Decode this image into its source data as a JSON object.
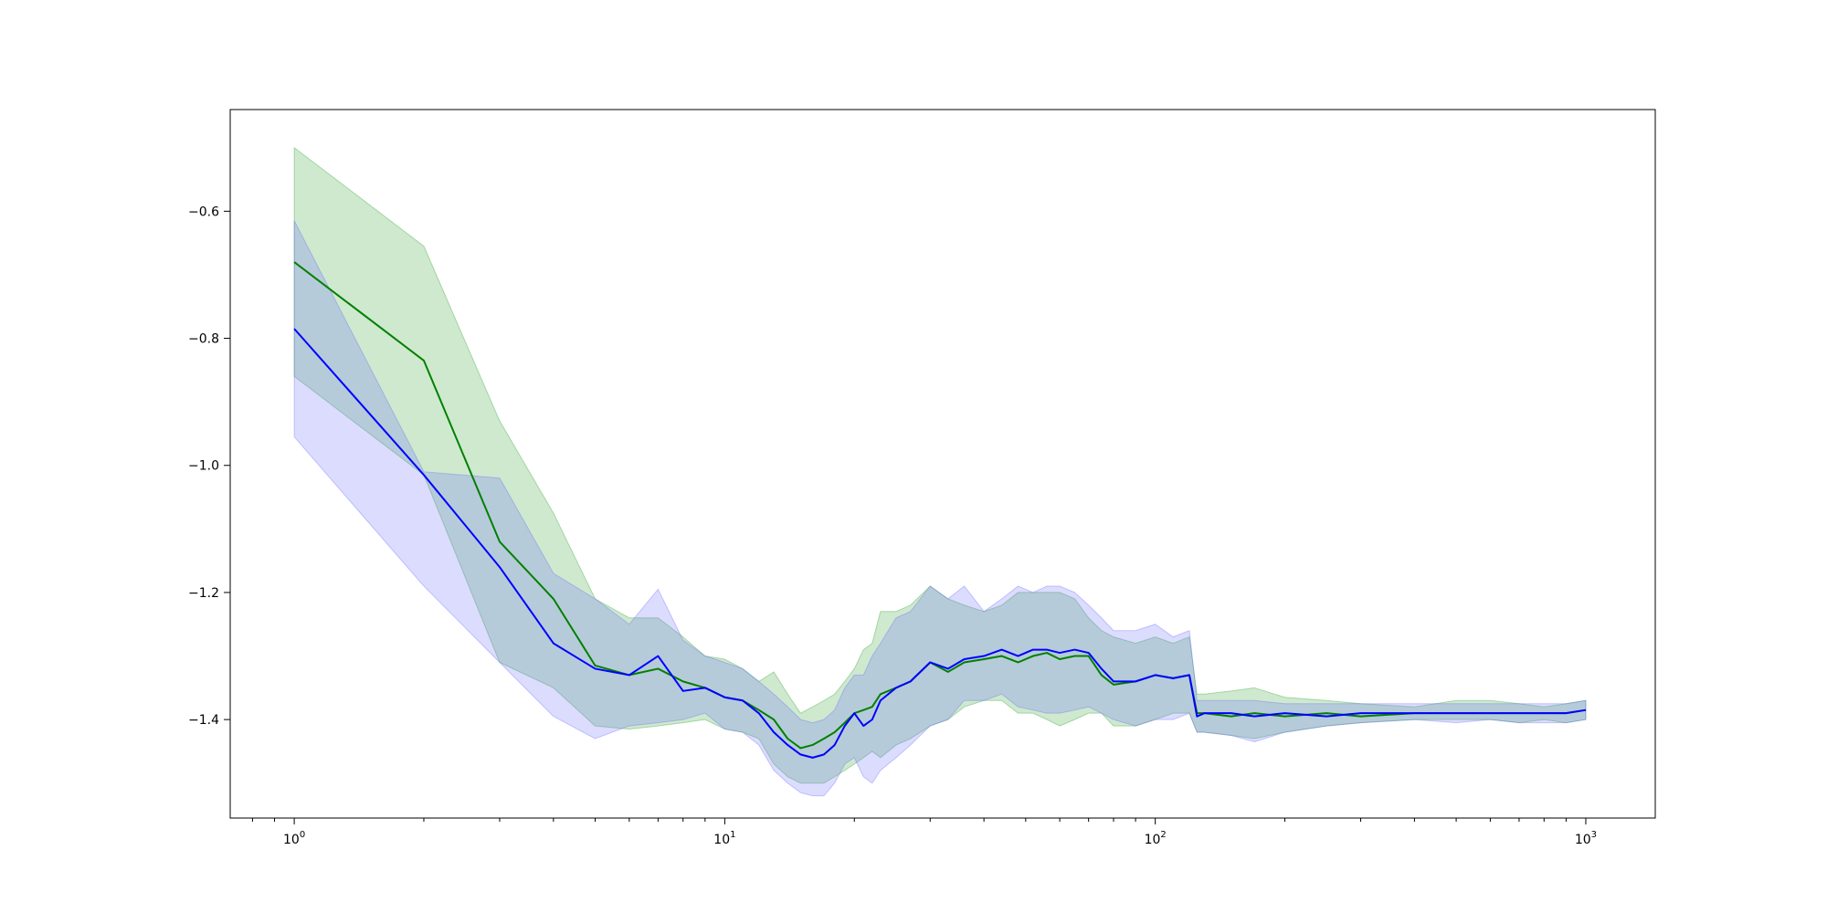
{
  "chart_data": {
    "type": "line",
    "title": "",
    "xlabel": "",
    "ylabel": "",
    "xscale": "log",
    "xlim": [
      0.71,
      1450
    ],
    "ylim": [
      -1.555,
      -0.44
    ],
    "grid": false,
    "x_ticks": [
      {
        "value": 1,
        "base": "10",
        "exp": "0"
      },
      {
        "value": 10,
        "base": "10",
        "exp": "1"
      },
      {
        "value": 100,
        "base": "10",
        "exp": "2"
      },
      {
        "value": 1000,
        "base": "10",
        "exp": "3"
      }
    ],
    "y_ticks": [
      {
        "value": -0.6,
        "label": "−0.6"
      },
      {
        "value": -0.8,
        "label": "−0.8"
      },
      {
        "value": -1.0,
        "label": "−1.0"
      },
      {
        "value": -1.2,
        "label": "−1.2"
      },
      {
        "value": -1.4,
        "label": "−1.4"
      }
    ],
    "series": [
      {
        "color": "#008000",
        "band_color": "#2ca02c",
        "x": [
          1,
          2,
          3,
          4,
          5,
          6,
          7,
          8,
          9,
          10,
          11,
          12,
          13,
          14,
          15,
          16,
          17,
          18,
          19,
          20,
          21,
          22,
          23,
          25,
          27,
          30,
          33,
          36,
          40,
          44,
          48,
          52,
          56,
          60,
          65,
          70,
          75,
          80,
          90,
          100,
          110,
          120,
          125,
          130,
          150,
          170,
          200,
          250,
          300,
          400,
          500,
          600,
          700,
          800,
          900,
          1000
        ],
        "y": [
          -0.68,
          -0.835,
          -1.12,
          -1.21,
          -1.315,
          -1.33,
          -1.32,
          -1.34,
          -1.35,
          -1.365,
          -1.37,
          -1.385,
          -1.4,
          -1.43,
          -1.445,
          -1.44,
          -1.43,
          -1.42,
          -1.405,
          -1.39,
          -1.385,
          -1.38,
          -1.36,
          -1.35,
          -1.34,
          -1.31,
          -1.325,
          -1.31,
          -1.305,
          -1.3,
          -1.31,
          -1.3,
          -1.295,
          -1.305,
          -1.3,
          -1.3,
          -1.33,
          -1.345,
          -1.34,
          -1.33,
          -1.335,
          -1.33,
          -1.39,
          -1.39,
          -1.395,
          -1.39,
          -1.395,
          -1.39,
          -1.395,
          -1.39,
          -1.39,
          -1.39,
          -1.39,
          -1.39,
          -1.39,
          -1.385
        ],
        "upper": [
          -0.5,
          -0.655,
          -0.93,
          -1.075,
          -1.21,
          -1.24,
          -1.24,
          -1.27,
          -1.3,
          -1.305,
          -1.32,
          -1.34,
          -1.325,
          -1.36,
          -1.39,
          -1.38,
          -1.37,
          -1.36,
          -1.34,
          -1.32,
          -1.29,
          -1.28,
          -1.23,
          -1.23,
          -1.22,
          -1.19,
          -1.21,
          -1.22,
          -1.23,
          -1.22,
          -1.2,
          -1.2,
          -1.2,
          -1.2,
          -1.21,
          -1.24,
          -1.26,
          -1.27,
          -1.28,
          -1.27,
          -1.28,
          -1.27,
          -1.36,
          -1.36,
          -1.355,
          -1.35,
          -1.365,
          -1.37,
          -1.375,
          -1.38,
          -1.37,
          -1.37,
          -1.375,
          -1.38,
          -1.375,
          -1.37
        ],
        "lower": [
          -0.86,
          -1.015,
          -1.31,
          -1.35,
          -1.41,
          -1.415,
          -1.41,
          -1.405,
          -1.4,
          -1.415,
          -1.42,
          -1.43,
          -1.47,
          -1.49,
          -1.5,
          -1.5,
          -1.5,
          -1.49,
          -1.48,
          -1.47,
          -1.46,
          -1.45,
          -1.46,
          -1.44,
          -1.43,
          -1.41,
          -1.4,
          -1.38,
          -1.37,
          -1.37,
          -1.39,
          -1.39,
          -1.4,
          -1.41,
          -1.4,
          -1.39,
          -1.39,
          -1.41,
          -1.41,
          -1.4,
          -1.39,
          -1.39,
          -1.42,
          -1.42,
          -1.425,
          -1.43,
          -1.42,
          -1.41,
          -1.405,
          -1.4,
          -1.4,
          -1.4,
          -1.405,
          -1.4,
          -1.405,
          -1.4
        ]
      },
      {
        "color": "#0000ff",
        "band_color": "#6666ff",
        "x": [
          1,
          2,
          3,
          4,
          5,
          6,
          7,
          8,
          9,
          10,
          11,
          12,
          13,
          14,
          15,
          16,
          17,
          18,
          19,
          20,
          21,
          22,
          23,
          25,
          27,
          30,
          33,
          36,
          40,
          44,
          48,
          52,
          56,
          60,
          65,
          70,
          75,
          80,
          90,
          100,
          110,
          120,
          125,
          130,
          150,
          170,
          200,
          250,
          300,
          400,
          500,
          600,
          700,
          800,
          900,
          1000
        ],
        "y": [
          -0.785,
          -1.015,
          -1.16,
          -1.28,
          -1.32,
          -1.33,
          -1.3,
          -1.355,
          -1.35,
          -1.365,
          -1.37,
          -1.39,
          -1.42,
          -1.44,
          -1.455,
          -1.46,
          -1.455,
          -1.44,
          -1.41,
          -1.39,
          -1.41,
          -1.4,
          -1.37,
          -1.35,
          -1.34,
          -1.31,
          -1.32,
          -1.305,
          -1.3,
          -1.29,
          -1.3,
          -1.29,
          -1.29,
          -1.295,
          -1.29,
          -1.295,
          -1.32,
          -1.34,
          -1.34,
          -1.33,
          -1.335,
          -1.33,
          -1.395,
          -1.39,
          -1.39,
          -1.395,
          -1.39,
          -1.395,
          -1.39,
          -1.39,
          -1.39,
          -1.39,
          -1.39,
          -1.39,
          -1.39,
          -1.385
        ],
        "upper": [
          -0.615,
          -1.01,
          -1.02,
          -1.17,
          -1.21,
          -1.25,
          -1.195,
          -1.275,
          -1.3,
          -1.31,
          -1.32,
          -1.34,
          -1.36,
          -1.38,
          -1.4,
          -1.405,
          -1.4,
          -1.385,
          -1.35,
          -1.33,
          -1.33,
          -1.3,
          -1.28,
          -1.24,
          -1.23,
          -1.19,
          -1.21,
          -1.19,
          -1.23,
          -1.21,
          -1.19,
          -1.2,
          -1.19,
          -1.19,
          -1.2,
          -1.22,
          -1.24,
          -1.26,
          -1.26,
          -1.25,
          -1.27,
          -1.26,
          -1.37,
          -1.37,
          -1.37,
          -1.37,
          -1.375,
          -1.375,
          -1.375,
          -1.375,
          -1.375,
          -1.375,
          -1.375,
          -1.375,
          -1.375,
          -1.37
        ],
        "lower": [
          -0.955,
          -1.19,
          -1.31,
          -1.395,
          -1.43,
          -1.41,
          -1.405,
          -1.4,
          -1.39,
          -1.415,
          -1.42,
          -1.44,
          -1.48,
          -1.5,
          -1.515,
          -1.52,
          -1.52,
          -1.5,
          -1.47,
          -1.46,
          -1.49,
          -1.5,
          -1.48,
          -1.46,
          -1.44,
          -1.41,
          -1.4,
          -1.37,
          -1.37,
          -1.36,
          -1.38,
          -1.385,
          -1.39,
          -1.39,
          -1.385,
          -1.38,
          -1.39,
          -1.4,
          -1.41,
          -1.4,
          -1.4,
          -1.39,
          -1.42,
          -1.42,
          -1.425,
          -1.435,
          -1.42,
          -1.41,
          -1.405,
          -1.4,
          -1.405,
          -1.4,
          -1.405,
          -1.405,
          -1.405,
          -1.4
        ]
      }
    ]
  }
}
